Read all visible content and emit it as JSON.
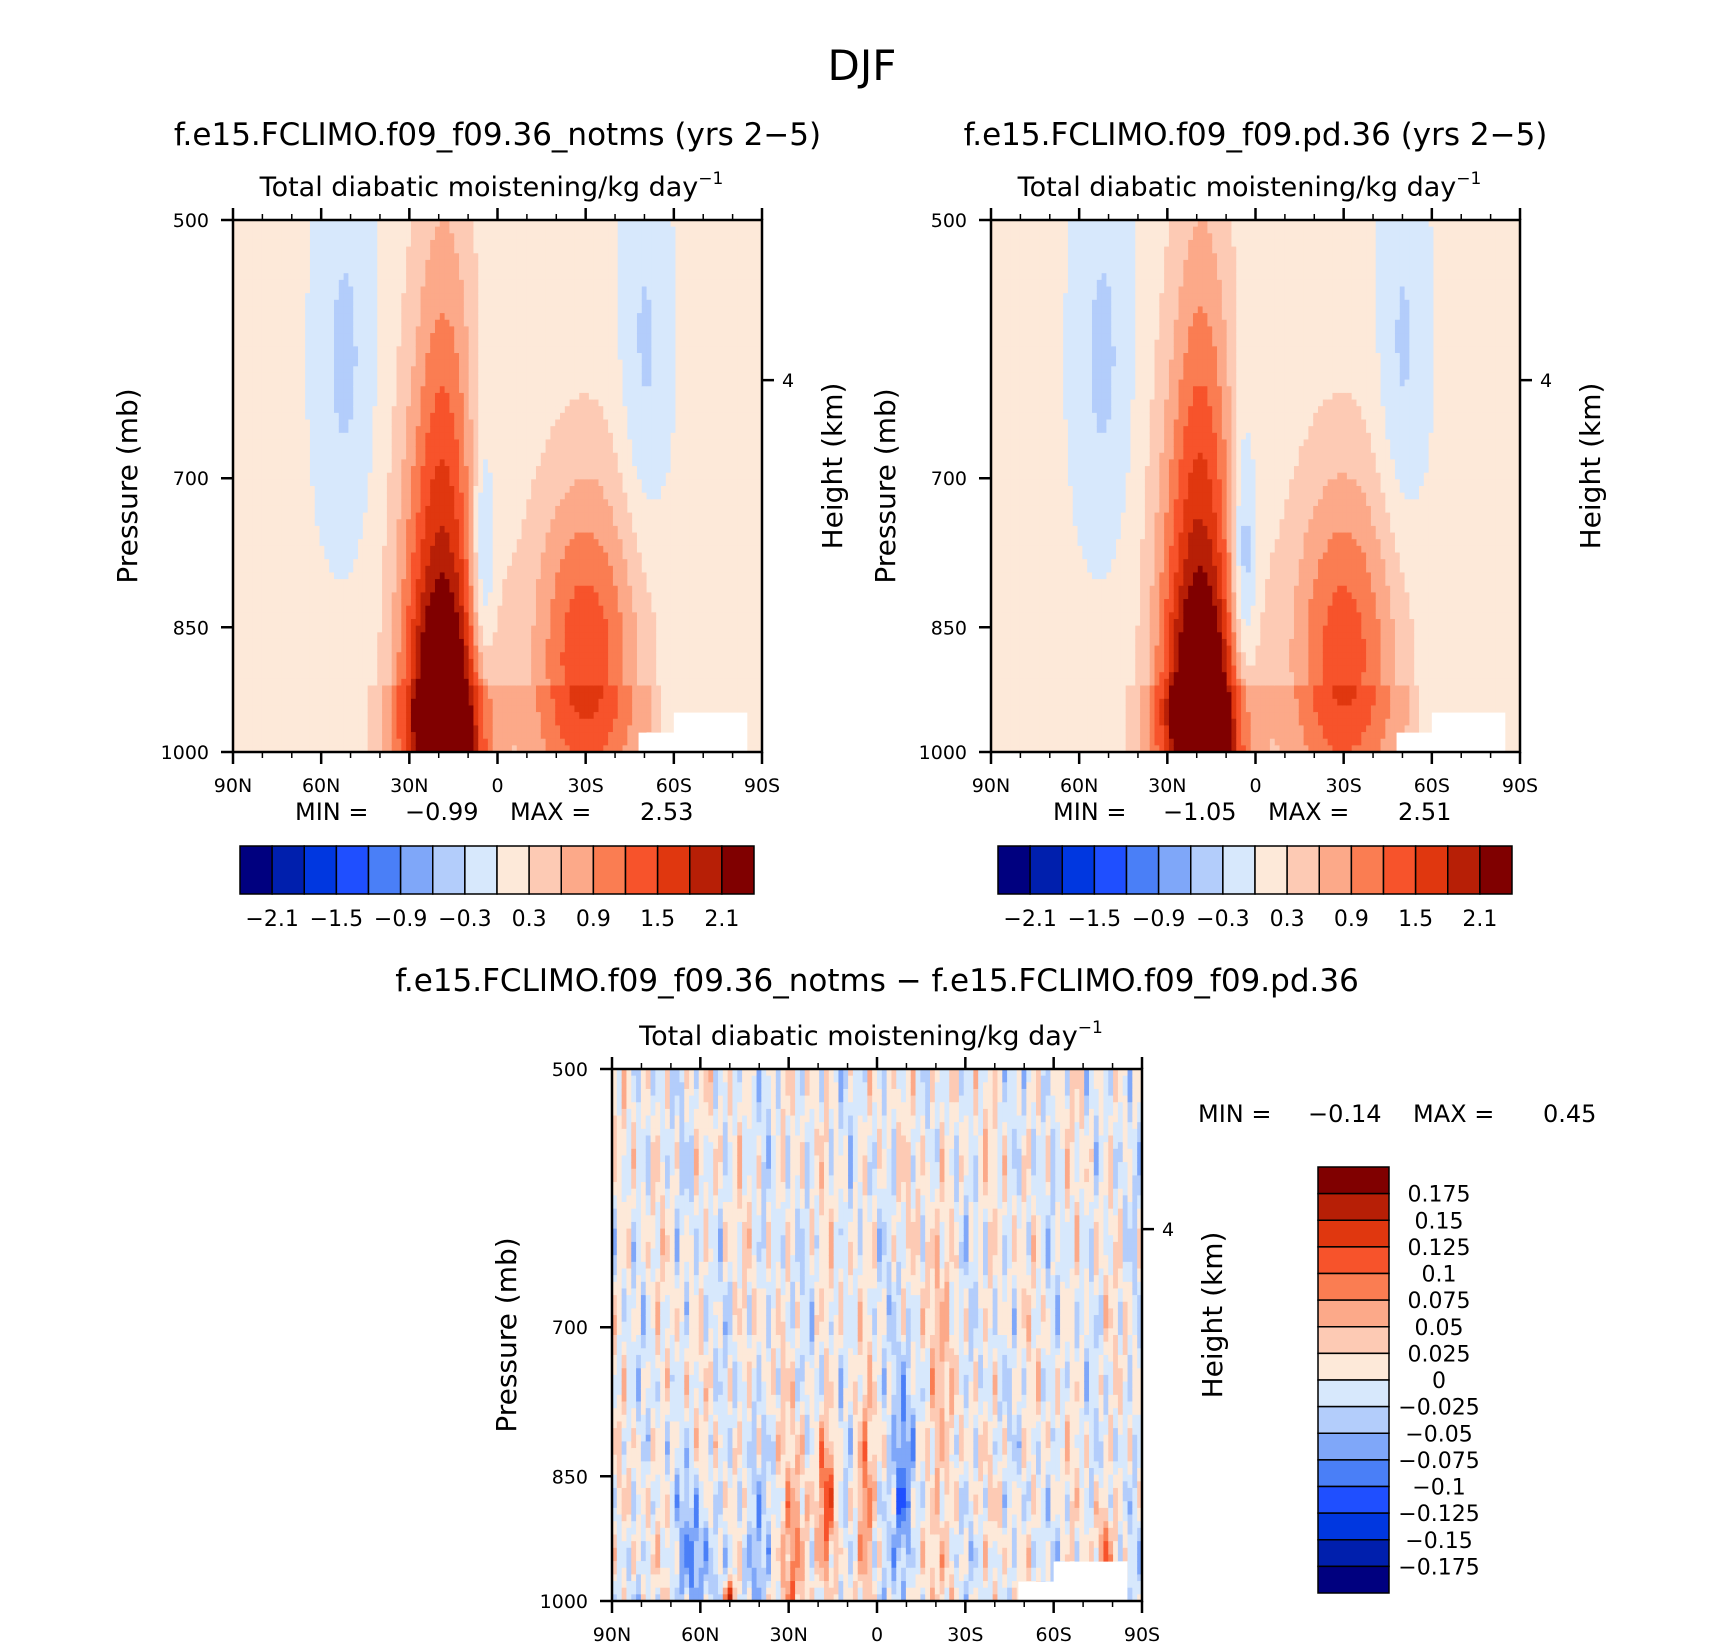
{
  "figure_title": "DJF",
  "chart_data": [
    {
      "type": "heatmap",
      "title": "f.e15.FCLIMO.f09_f09.36_notms (yrs 2−5)",
      "subtitle": "Total diabatic moistening/kg day",
      "subtitle_exp": "−1",
      "ylabel": "Pressure (mb)",
      "ylabel_right": "Height (km)",
      "x_ticks": [
        "90N",
        "60N",
        "30N",
        "0",
        "30S",
        "60S",
        "90S"
      ],
      "x_tick_values": [
        90,
        60,
        30,
        0,
        -30,
        -60,
        -90
      ],
      "xlim": [
        90,
        -90
      ],
      "y_ticks": [
        "500",
        "700",
        "850",
        "1000"
      ],
      "y_tick_values": [
        500,
        700,
        850,
        1000
      ],
      "ylim": [
        500,
        1000
      ],
      "y_scale": "log",
      "right_ticks": [
        "4"
      ],
      "right_tick_pressures": [
        616
      ],
      "min_label": "MIN =",
      "min_value": "−0.99",
      "max_label": "MAX =",
      "max_value": "2.53",
      "colorbar_labels": [
        "−2.1",
        "−1.5",
        "−0.9",
        "−0.3",
        "0.3",
        "0.9",
        "1.5",
        "2.1"
      ],
      "colorbar_levels": [
        -2.4,
        -2.1,
        -1.8,
        -1.5,
        -1.2,
        -0.9,
        -0.6,
        -0.3,
        0,
        0.3,
        0.6,
        0.9,
        1.2,
        1.5,
        1.8,
        2.1,
        2.4
      ],
      "features": [
        {
          "kind": "pos",
          "lat": 18,
          "p": 990,
          "amp": 2.3,
          "sx": 9,
          "sp": 110
        },
        {
          "kind": "pos",
          "lat": 20,
          "p": 830,
          "amp": 1.3,
          "sx": 10,
          "sp": 170
        },
        {
          "kind": "pos",
          "lat": 18,
          "p": 640,
          "amp": 0.5,
          "sx": 7,
          "sp": 150
        },
        {
          "kind": "neg",
          "lat": 5,
          "p": 790,
          "amp": -0.85,
          "sx": 3,
          "sp": 95
        },
        {
          "kind": "pos",
          "lat": -30,
          "p": 885,
          "amp": 1.35,
          "sx": 13,
          "sp": 135
        },
        {
          "kind": "neg",
          "lat": 52,
          "p": 600,
          "amp": -0.45,
          "sx": 7,
          "sp": 110
        },
        {
          "kind": "neg",
          "lat": -50,
          "p": 600,
          "amp": -0.45,
          "sx": 6,
          "sp": 110
        }
      ]
    },
    {
      "type": "heatmap",
      "title": "f.e15.FCLIMO.f09_f09.pd.36 (yrs 2−5)",
      "subtitle": "Total diabatic moistening/kg day",
      "subtitle_exp": "−1",
      "ylabel": "Pressure (mb)",
      "ylabel_right": "Height (km)",
      "x_ticks": [
        "90N",
        "60N",
        "30N",
        "0",
        "30S",
        "60S",
        "90S"
      ],
      "x_tick_values": [
        90,
        60,
        30,
        0,
        -30,
        -60,
        -90
      ],
      "xlim": [
        90,
        -90
      ],
      "y_ticks": [
        "500",
        "700",
        "850",
        "1000"
      ],
      "y_tick_values": [
        500,
        700,
        850,
        1000
      ],
      "ylim": [
        500,
        1000
      ],
      "y_scale": "log",
      "right_ticks": [
        "4"
      ],
      "right_tick_pressures": [
        616
      ],
      "min_label": "MIN =",
      "min_value": "−1.05",
      "max_label": "MAX =",
      "max_value": "2.51",
      "colorbar_labels": [
        "−2.1",
        "−1.5",
        "−0.9",
        "−0.3",
        "0.3",
        "0.9",
        "1.5",
        "2.1"
      ],
      "colorbar_levels": [
        -2.4,
        -2.1,
        -1.8,
        -1.5,
        -1.2,
        -0.9,
        -0.6,
        -0.3,
        0,
        0.3,
        0.6,
        0.9,
        1.2,
        1.5,
        1.8,
        2.1,
        2.4
      ],
      "features": [
        {
          "kind": "pos",
          "lat": 18,
          "p": 990,
          "amp": 2.3,
          "sx": 9,
          "sp": 110
        },
        {
          "kind": "pos",
          "lat": 20,
          "p": 830,
          "amp": 1.35,
          "sx": 10,
          "sp": 170
        },
        {
          "kind": "pos",
          "lat": 18,
          "p": 640,
          "amp": 0.5,
          "sx": 7,
          "sp": 150
        },
        {
          "kind": "neg",
          "lat": 4,
          "p": 790,
          "amp": -0.95,
          "sx": 3,
          "sp": 95
        },
        {
          "kind": "pos",
          "lat": -30,
          "p": 880,
          "amp": 1.3,
          "sx": 13,
          "sp": 135
        },
        {
          "kind": "neg",
          "lat": 52,
          "p": 600,
          "amp": -0.45,
          "sx": 7,
          "sp": 110
        },
        {
          "kind": "neg",
          "lat": -50,
          "p": 600,
          "amp": -0.45,
          "sx": 6,
          "sp": 110
        }
      ]
    },
    {
      "type": "heatmap",
      "title": "f.e15.FCLIMO.f09_f09.36_notms − f.e15.FCLIMO.f09_f09.pd.36",
      "subtitle": "Total diabatic moistening/kg day",
      "subtitle_exp": "−1",
      "ylabel": "Pressure (mb)",
      "ylabel_right": "Height (km)",
      "x_ticks": [
        "90N",
        "60N",
        "30N",
        "0",
        "30S",
        "60S",
        "90S"
      ],
      "x_tick_values": [
        90,
        60,
        30,
        0,
        -30,
        -60,
        -90
      ],
      "xlim": [
        90,
        -90
      ],
      "y_ticks": [
        "500",
        "700",
        "850",
        "1000"
      ],
      "y_tick_values": [
        500,
        700,
        850,
        1000
      ],
      "ylim": [
        500,
        1000
      ],
      "y_scale": "log",
      "right_ticks": [
        "4"
      ],
      "right_tick_pressures": [
        616
      ],
      "min_label": "MIN =",
      "min_value": "−0.14",
      "max_label": "MAX =",
      "max_value": "0.45",
      "colorbar_labels": [
        "0.175",
        "0.15",
        "0.125",
        "0.1",
        "0.075",
        "0.05",
        "0.025",
        "0",
        "−0.025",
        "−0.05",
        "−0.075",
        "−0.1",
        "−0.125",
        "−0.15",
        "−0.175"
      ],
      "colorbar_levels": [
        -0.2,
        -0.175,
        -0.15,
        -0.125,
        -0.1,
        -0.075,
        -0.05,
        -0.025,
        0,
        0.025,
        0.05,
        0.075,
        0.1,
        0.125,
        0.15,
        0.175,
        0.2
      ],
      "features": [
        {
          "kind": "pos",
          "lat": 28,
          "p": 950,
          "amp": 0.09,
          "sx": 3,
          "sp": 80
        },
        {
          "kind": "pos",
          "lat": 17,
          "p": 870,
          "amp": 0.1,
          "sx": 2,
          "sp": 60
        },
        {
          "kind": "pos",
          "lat": 4,
          "p": 880,
          "amp": 0.08,
          "sx": 2,
          "sp": 70
        },
        {
          "kind": "neg",
          "lat": -9,
          "p": 860,
          "amp": -0.11,
          "sx": 2.5,
          "sp": 80
        },
        {
          "kind": "neg",
          "lat": 62,
          "p": 950,
          "amp": -0.07,
          "sx": 4,
          "sp": 60
        },
        {
          "kind": "neg",
          "lat": 42,
          "p": 960,
          "amp": -0.06,
          "sx": 3,
          "sp": 70
        },
        {
          "kind": "pos",
          "lat": -20,
          "p": 800,
          "amp": 0.05,
          "sx": 3,
          "sp": 150
        },
        {
          "kind": "pos",
          "lat": -77,
          "p": 945,
          "amp": 0.08,
          "sx": 2,
          "sp": 40
        },
        {
          "kind": "pos",
          "lat": 50,
          "p": 995,
          "amp": 0.15,
          "sx": 1.5,
          "sp": 15
        }
      ]
    }
  ]
}
